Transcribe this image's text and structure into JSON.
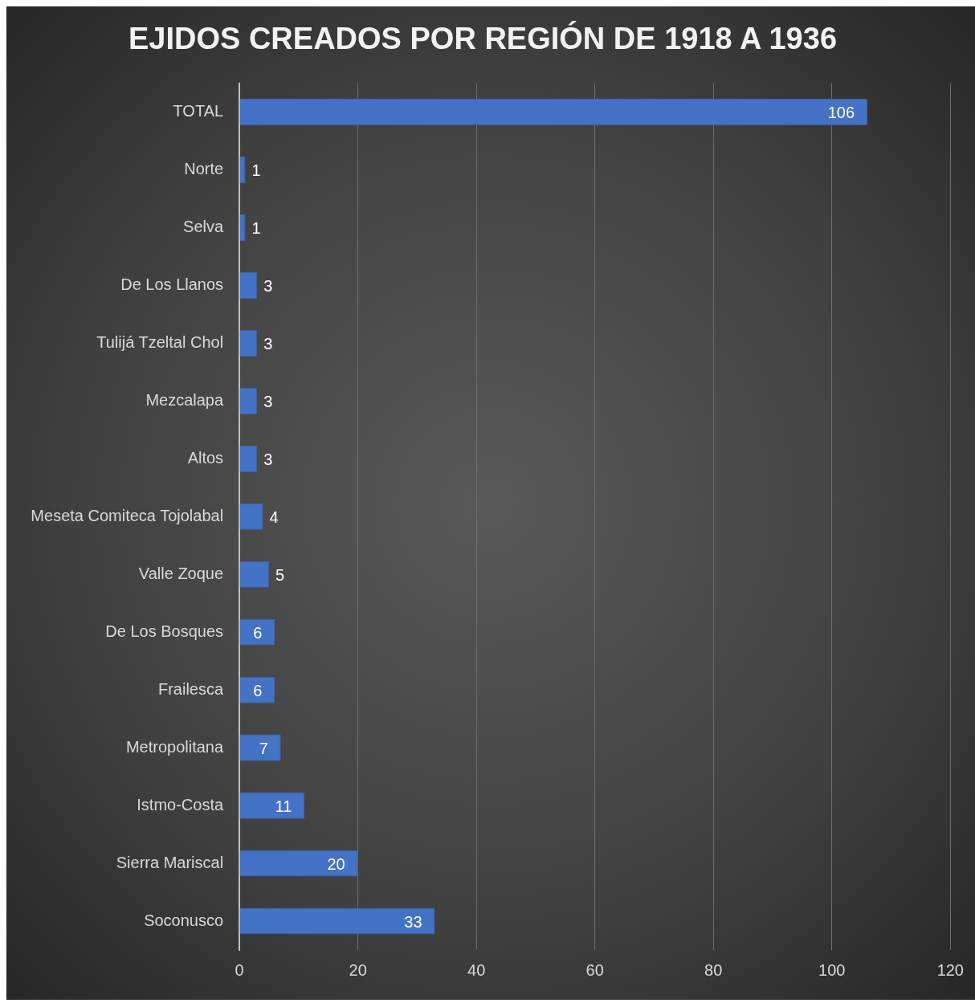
{
  "chart_data": {
    "type": "bar",
    "orientation": "horizontal",
    "title": "EJIDOS CREADOS POR REGIÓN DE 1918 A 1936",
    "categories": [
      "TOTAL",
      "Norte",
      "Selva",
      "De Los Llanos",
      "Tulijá Tzeltal Chol",
      "Mezcalapa",
      "Altos",
      "Meseta Comiteca Tojolabal",
      "Valle Zoque",
      "De Los Bosques",
      "Frailesca",
      "Metropolitana",
      "Istmo-Costa",
      "Sierra Mariscal",
      "Soconusco"
    ],
    "values": [
      106,
      1,
      1,
      3,
      3,
      3,
      3,
      4,
      5,
      6,
      6,
      7,
      11,
      20,
      33
    ],
    "color": "#4472c4",
    "xlim": [
      0,
      120
    ],
    "xticks": [
      0,
      20,
      40,
      60,
      80,
      100,
      120
    ],
    "grid": "x",
    "legend": false,
    "data_labels": true
  }
}
